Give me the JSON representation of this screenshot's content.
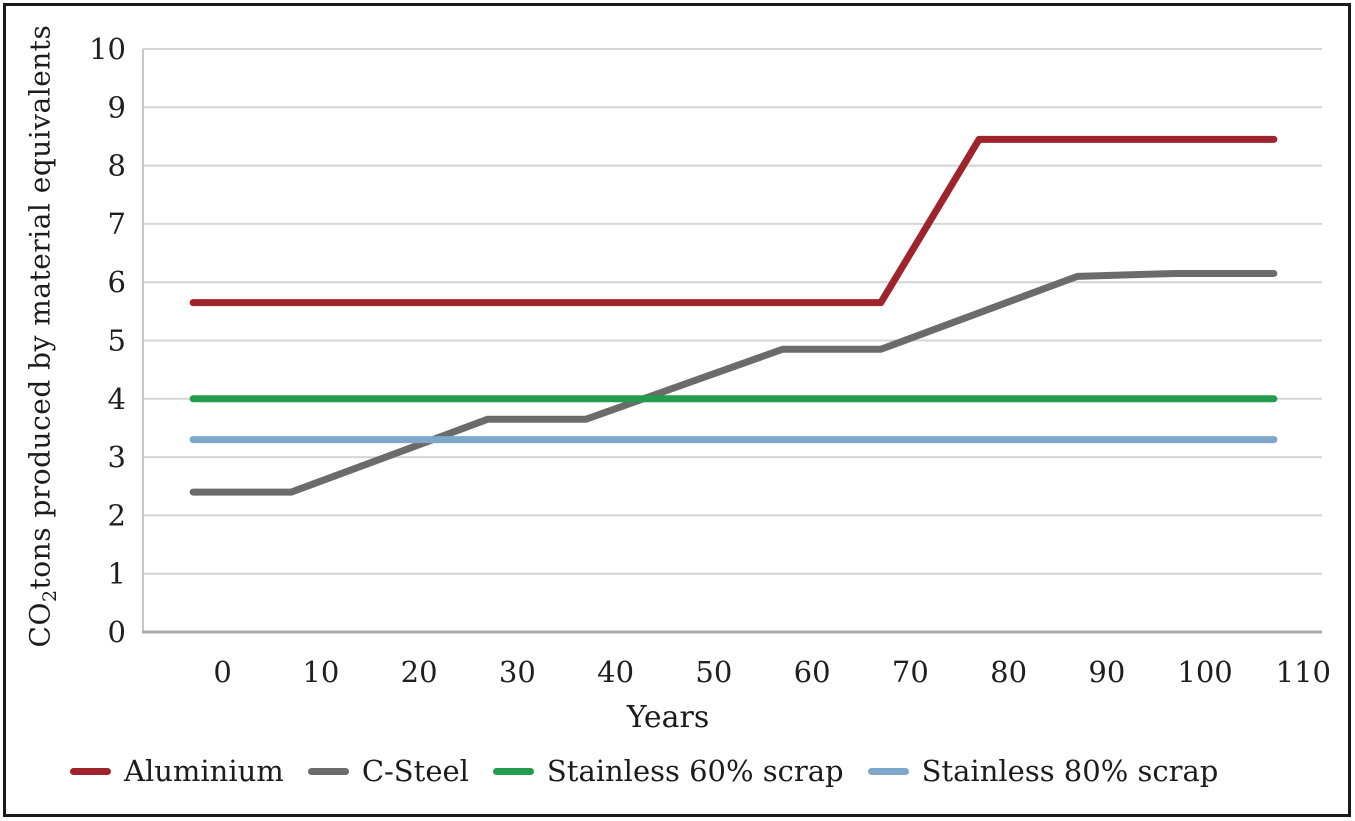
{
  "chart_data": {
    "type": "line",
    "xlabel": "Years",
    "ylabel": "CO2tons produced by material equivalents",
    "ylabel_parts": {
      "prefix": "CO",
      "subscript": "2",
      "suffix": "tons produced by material equivalents"
    },
    "x_ticks": [
      0,
      10,
      20,
      30,
      40,
      50,
      60,
      70,
      80,
      90,
      100,
      110
    ],
    "y_ticks": [
      0,
      1,
      2,
      3,
      4,
      5,
      6,
      7,
      8,
      9,
      10
    ],
    "xlim": [
      -8.1,
      111.9
    ],
    "ylim": [
      0,
      10
    ],
    "grid": "horizontal",
    "legend_position": "bottom",
    "series": [
      {
        "name": "Aluminium",
        "color": "#9f232a",
        "points": [
          [
            -3,
            5.65
          ],
          [
            67,
            5.65
          ],
          [
            77,
            8.45
          ],
          [
            107,
            8.45
          ]
        ]
      },
      {
        "name": "C-Steel",
        "color": "#6b6b6b",
        "points": [
          [
            -3,
            2.4
          ],
          [
            7,
            2.4
          ],
          [
            27,
            3.65
          ],
          [
            37,
            3.65
          ],
          [
            57,
            4.85
          ],
          [
            67,
            4.85
          ],
          [
            87,
            6.1
          ],
          [
            97,
            6.15
          ],
          [
            107,
            6.15
          ]
        ]
      },
      {
        "name": "Stainless 60% scrap",
        "color": "#239c4d",
        "points": [
          [
            -3,
            4.0
          ],
          [
            107,
            4.0
          ]
        ]
      },
      {
        "name": "Stainless 80% scrap",
        "color": "#7fa6cb",
        "points": [
          [
            -3,
            3.3
          ],
          [
            107,
            3.3
          ]
        ]
      }
    ],
    "colors": {
      "gridline": "#d4d4d4",
      "axis_bottom": "#a9a9a9",
      "axis_left": "#c8c8c8",
      "text": "#1f1f1f",
      "frame": "#1a1a1a"
    }
  }
}
